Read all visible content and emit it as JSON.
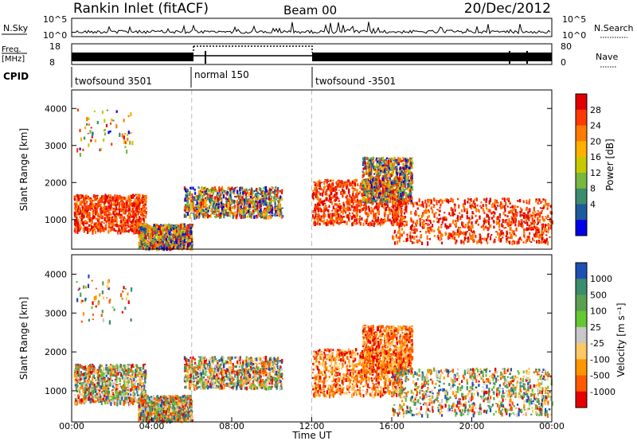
{
  "header": {
    "title": "Rankin Inlet (fitACF)",
    "beam": "Beam 00",
    "date": "20/Dec/2012"
  },
  "top_panel": {
    "left_label": "N.Sky",
    "right_label": "N.Search",
    "left_ticks": [
      "10^5",
      "10^0"
    ],
    "right_ticks": [
      "10^5",
      "10^0"
    ]
  },
  "freq_panel": {
    "label_line1": "Freq.",
    "label_line2": "[MHz]",
    "left_ticks": [
      "18",
      "8"
    ],
    "right_ticks": [
      "80",
      "0"
    ],
    "right_label": "Nave"
  },
  "cpid": {
    "label": "CPID",
    "segments": [
      {
        "label": "twofsound 3501",
        "start": 0,
        "end": 6
      },
      {
        "label": "normal 150",
        "start": 6,
        "end": 12
      },
      {
        "label": "twofsound -3501",
        "start": 12,
        "end": 24
      }
    ]
  },
  "x_axis": {
    "label": "Time UT",
    "ticks": [
      "00:00",
      "04:00",
      "08:00",
      "12:00",
      "16:00",
      "20:00",
      "00:00"
    ],
    "range_hours": [
      0,
      24
    ]
  },
  "chart_data": [
    {
      "type": "heatmap",
      "panel": "power",
      "ylabel": "Slant Range [km]",
      "y_ticks": [
        1000,
        2000,
        3000,
        4000
      ],
      "ylim": [
        200,
        4500
      ],
      "xlim": [
        0,
        24
      ],
      "colorbar": {
        "label": "Power [dB]",
        "ticks": [
          "28",
          "24",
          "20",
          "16",
          "12",
          "8",
          "4"
        ],
        "colors": [
          "#e00000",
          "#ff3a00",
          "#ff7a00",
          "#ffb000",
          "#c8c800",
          "#78b83c",
          "#3c8c6e",
          "#1e5a9c",
          "#0000e6"
        ]
      },
      "echo_regions": [
        {
          "t0": 0.1,
          "t1": 3.7,
          "r0": 700,
          "r1": 1700,
          "level": "high"
        },
        {
          "t0": 3.3,
          "t1": 6.0,
          "r0": 250,
          "r1": 900,
          "level": "mixed"
        },
        {
          "t0": 5.6,
          "t1": 10.5,
          "r0": 1100,
          "r1": 1900,
          "level": "mixed"
        },
        {
          "t0": 12.0,
          "t1": 16.5,
          "r0": 900,
          "r1": 2100,
          "level": "high"
        },
        {
          "t0": 14.5,
          "t1": 17.0,
          "r0": 1500,
          "r1": 2700,
          "level": "mixed"
        },
        {
          "t0": 16.0,
          "t1": 24.0,
          "r0": 400,
          "r1": 1600,
          "level": "high"
        },
        {
          "t0": 0.2,
          "t1": 3.0,
          "r0": 2800,
          "r1": 4000,
          "level": "sparse"
        }
      ]
    },
    {
      "type": "heatmap",
      "panel": "velocity",
      "ylabel": "Slant Range [km]",
      "y_ticks": [
        1000,
        2000,
        3000,
        4000
      ],
      "ylim": [
        200,
        4500
      ],
      "xlim": [
        0,
        24
      ],
      "colorbar": {
        "label": "Velocity [m s⁻¹]",
        "ticks": [
          "1000",
          "500",
          "100",
          "25",
          "-25",
          "-100",
          "-500",
          "-1000"
        ],
        "colors": [
          "#1e50b4",
          "#3c8c6e",
          "#5aa050",
          "#64c832",
          "#c8c8c8",
          "#ffc864",
          "#ff9600",
          "#ff5a00",
          "#e60000"
        ]
      },
      "echo_regions": [
        {
          "t0": 0.1,
          "t1": 3.7,
          "r0": 700,
          "r1": 1700,
          "level": "mixed"
        },
        {
          "t0": 3.3,
          "t1": 6.0,
          "r0": 250,
          "r1": 900,
          "level": "mixed"
        },
        {
          "t0": 5.6,
          "t1": 10.5,
          "r0": 1100,
          "r1": 1900,
          "level": "mixed"
        },
        {
          "t0": 12.0,
          "t1": 16.5,
          "r0": 900,
          "r1": 2100,
          "level": "negative"
        },
        {
          "t0": 14.5,
          "t1": 17.0,
          "r0": 1500,
          "r1": 2700,
          "level": "negative"
        },
        {
          "t0": 16.0,
          "t1": 24.0,
          "r0": 400,
          "r1": 1600,
          "level": "mixed"
        },
        {
          "t0": 0.2,
          "t1": 3.0,
          "r0": 2800,
          "r1": 4000,
          "level": "sparse"
        }
      ]
    }
  ]
}
